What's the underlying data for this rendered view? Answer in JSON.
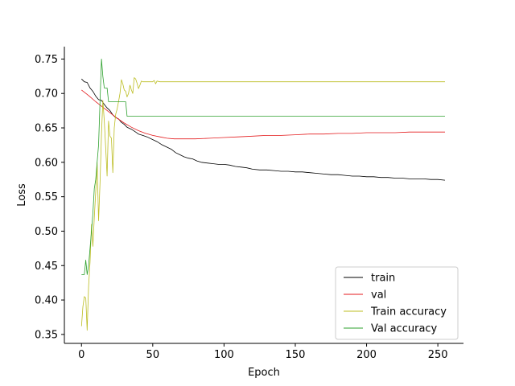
{
  "chart_data": {
    "type": "line",
    "title": "",
    "xlabel": "Epoch",
    "ylabel": "Loss",
    "xlim": [
      -12,
      268
    ],
    "ylim": [
      0.337,
      0.768
    ],
    "xticks": [
      "0",
      "50",
      "100",
      "150",
      "200",
      "250"
    ],
    "yticks": [
      "0.35",
      "0.40",
      "0.45",
      "0.50",
      "0.55",
      "0.60",
      "0.65",
      "0.70",
      "0.75"
    ],
    "grid": false,
    "legend_position": "lower-right",
    "series": [
      {
        "name": "train",
        "color": "#000000",
        "points": [
          [
            0,
            0.721
          ],
          [
            2,
            0.717
          ],
          [
            4,
            0.716
          ],
          [
            6,
            0.708
          ],
          [
            8,
            0.703
          ],
          [
            10,
            0.696
          ],
          [
            12,
            0.691
          ],
          [
            14,
            0.69
          ],
          [
            16,
            0.684
          ],
          [
            18,
            0.679
          ],
          [
            20,
            0.675
          ],
          [
            22,
            0.669
          ],
          [
            24,
            0.665
          ],
          [
            26,
            0.663
          ],
          [
            28,
            0.658
          ],
          [
            30,
            0.655
          ],
          [
            32,
            0.651
          ],
          [
            35,
            0.648
          ],
          [
            38,
            0.644
          ],
          [
            40,
            0.641
          ],
          [
            43,
            0.639
          ],
          [
            46,
            0.637
          ],
          [
            50,
            0.633
          ],
          [
            53,
            0.63
          ],
          [
            56,
            0.626
          ],
          [
            60,
            0.622
          ],
          [
            63,
            0.619
          ],
          [
            66,
            0.614
          ],
          [
            69,
            0.611
          ],
          [
            72,
            0.608
          ],
          [
            75,
            0.606
          ],
          [
            78,
            0.605
          ],
          [
            81,
            0.602
          ],
          [
            84,
            0.6
          ],
          [
            88,
            0.599
          ],
          [
            92,
            0.598
          ],
          [
            96,
            0.597
          ],
          [
            100,
            0.597
          ],
          [
            104,
            0.596
          ],
          [
            108,
            0.594
          ],
          [
            112,
            0.593
          ],
          [
            116,
            0.592
          ],
          [
            120,
            0.59
          ],
          [
            125,
            0.589
          ],
          [
            130,
            0.589
          ],
          [
            135,
            0.588
          ],
          [
            140,
            0.587
          ],
          [
            145,
            0.587
          ],
          [
            150,
            0.586
          ],
          [
            155,
            0.586
          ],
          [
            160,
            0.585
          ],
          [
            165,
            0.584
          ],
          [
            170,
            0.583
          ],
          [
            175,
            0.582
          ],
          [
            180,
            0.582
          ],
          [
            185,
            0.581
          ],
          [
            190,
            0.58
          ],
          [
            195,
            0.58
          ],
          [
            200,
            0.579
          ],
          [
            205,
            0.579
          ],
          [
            210,
            0.578
          ],
          [
            215,
            0.578
          ],
          [
            220,
            0.577
          ],
          [
            225,
            0.577
          ],
          [
            230,
            0.576
          ],
          [
            235,
            0.576
          ],
          [
            240,
            0.576
          ],
          [
            245,
            0.575
          ],
          [
            250,
            0.575
          ],
          [
            255,
            0.574
          ]
        ]
      },
      {
        "name": "val",
        "color": "#e41a1c",
        "points": [
          [
            0,
            0.705
          ],
          [
            5,
            0.697
          ],
          [
            10,
            0.688
          ],
          [
            15,
            0.68
          ],
          [
            20,
            0.672
          ],
          [
            25,
            0.664
          ],
          [
            30,
            0.657
          ],
          [
            35,
            0.651
          ],
          [
            40,
            0.646
          ],
          [
            45,
            0.642
          ],
          [
            50,
            0.639
          ],
          [
            55,
            0.637
          ],
          [
            60,
            0.635
          ],
          [
            65,
            0.634
          ],
          [
            70,
            0.634
          ],
          [
            80,
            0.634
          ],
          [
            90,
            0.635
          ],
          [
            100,
            0.636
          ],
          [
            110,
            0.637
          ],
          [
            120,
            0.638
          ],
          [
            130,
            0.639
          ],
          [
            140,
            0.639
          ],
          [
            150,
            0.64
          ],
          [
            160,
            0.641
          ],
          [
            170,
            0.641
          ],
          [
            180,
            0.642
          ],
          [
            190,
            0.642
          ],
          [
            200,
            0.643
          ],
          [
            210,
            0.643
          ],
          [
            220,
            0.643
          ],
          [
            230,
            0.644
          ],
          [
            240,
            0.644
          ],
          [
            255,
            0.644
          ]
        ]
      },
      {
        "name": "Train accuracy",
        "color": "#bcbd22",
        "points": [
          [
            0,
            0.362
          ],
          [
            1,
            0.39
          ],
          [
            2,
            0.405
          ],
          [
            3,
            0.403
          ],
          [
            4,
            0.356
          ],
          [
            5,
            0.42
          ],
          [
            6,
            0.455
          ],
          [
            7,
            0.51
          ],
          [
            8,
            0.478
          ],
          [
            9,
            0.52
          ],
          [
            10,
            0.558
          ],
          [
            11,
            0.6
          ],
          [
            12,
            0.515
          ],
          [
            13,
            0.57
          ],
          [
            14,
            0.64
          ],
          [
            15,
            0.69
          ],
          [
            16,
            0.66
          ],
          [
            17,
            0.62
          ],
          [
            18,
            0.58
          ],
          [
            19,
            0.66
          ],
          [
            20,
            0.638
          ],
          [
            21,
            0.635
          ],
          [
            22,
            0.585
          ],
          [
            23,
            0.65
          ],
          [
            24,
            0.67
          ],
          [
            25,
            0.677
          ],
          [
            26,
            0.688
          ],
          [
            27,
            0.7
          ],
          [
            28,
            0.72
          ],
          [
            29,
            0.714
          ],
          [
            30,
            0.705
          ],
          [
            31,
            0.703
          ],
          [
            32,
            0.695
          ],
          [
            33,
            0.7
          ],
          [
            34,
            0.712
          ],
          [
            35,
            0.705
          ],
          [
            36,
            0.7
          ],
          [
            37,
            0.723
          ],
          [
            38,
            0.721
          ],
          [
            39,
            0.715
          ],
          [
            40,
            0.707
          ],
          [
            41,
            0.712
          ],
          [
            42,
            0.718
          ],
          [
            43,
            0.717
          ],
          [
            50,
            0.717
          ],
          [
            51,
            0.719
          ],
          [
            52,
            0.714
          ],
          [
            53,
            0.718
          ],
          [
            55,
            0.717
          ],
          [
            255,
            0.717
          ]
        ]
      },
      {
        "name": "Val accuracy",
        "color": "#2ca02c",
        "points": [
          [
            0,
            0.437
          ],
          [
            2,
            0.437
          ],
          [
            3,
            0.458
          ],
          [
            4,
            0.437
          ],
          [
            5,
            0.45
          ],
          [
            6,
            0.475
          ],
          [
            7,
            0.5
          ],
          [
            8,
            0.525
          ],
          [
            9,
            0.562
          ],
          [
            10,
            0.575
          ],
          [
            11,
            0.6
          ],
          [
            12,
            0.625
          ],
          [
            13,
            0.688
          ],
          [
            14,
            0.75
          ],
          [
            15,
            0.725
          ],
          [
            16,
            0.708
          ],
          [
            18,
            0.708
          ],
          [
            19,
            0.688
          ],
          [
            31,
            0.688
          ],
          [
            32,
            0.667
          ],
          [
            255,
            0.667
          ]
        ]
      }
    ]
  }
}
